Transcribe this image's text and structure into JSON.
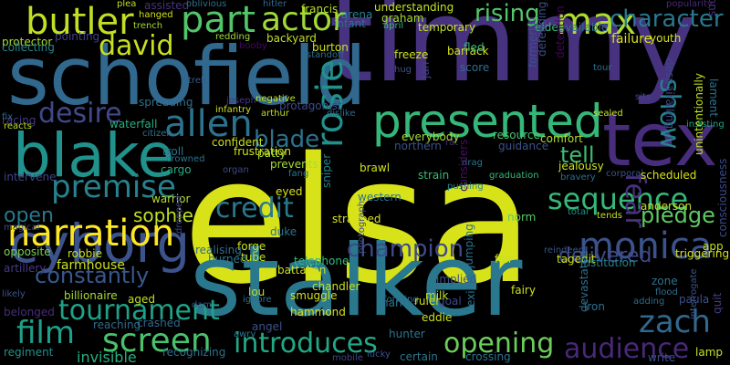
{
  "words": [
    {
      "text": "elsa",
      "color": "#d8e219"
    },
    {
      "text": "timmy",
      "color": "#46327e"
    },
    {
      "text": "stalker",
      "color": "#2a788e"
    },
    {
      "text": "schofield",
      "color": "#31688e"
    },
    {
      "text": "tex",
      "color": "#472d7b"
    },
    {
      "text": "blake",
      "color": "#21918c"
    },
    {
      "text": "presented",
      "color": "#35b779"
    },
    {
      "text": "cyborg",
      "color": "#3b528b"
    },
    {
      "text": "butler",
      "color": "#c2df23"
    },
    {
      "text": "part",
      "color": "#52c569"
    },
    {
      "text": "actor",
      "color": "#a0da39"
    },
    {
      "text": "max",
      "color": "#addc30"
    },
    {
      "text": "character",
      "color": "#29788e"
    },
    {
      "text": "david",
      "color": "#c8e020"
    },
    {
      "text": "rising",
      "color": "#54c568"
    },
    {
      "text": "allen",
      "color": "#2c728e"
    },
    {
      "text": "desire",
      "color": "#3f4889"
    },
    {
      "text": "monica",
      "color": "#3b528b"
    },
    {
      "text": "narration",
      "color": "#fde725"
    },
    {
      "text": "premise",
      "color": "#26828e"
    },
    {
      "text": "sequence",
      "color": "#35b779"
    },
    {
      "text": "rosie",
      "color": "#21918c"
    },
    {
      "text": "blade",
      "color": "#2c728e"
    },
    {
      "text": "credit",
      "color": "#2a788e"
    },
    {
      "text": "film",
      "color": "#1f9f88"
    },
    {
      "text": "screen",
      "color": "#4ac16d"
    },
    {
      "text": "introduces",
      "color": "#22a884"
    },
    {
      "text": "opening",
      "color": "#6ccd5a"
    },
    {
      "text": "zach",
      "color": "#31688e"
    },
    {
      "text": "audience",
      "color": "#482878"
    },
    {
      "text": "tournament",
      "color": "#1fa287"
    },
    {
      "text": "champion",
      "color": "#3e4a89"
    },
    {
      "text": "show",
      "color": "#26818e"
    },
    {
      "text": "fear",
      "color": "#46327e"
    },
    {
      "text": "pledge",
      "color": "#5ec962"
    },
    {
      "text": "delivered",
      "color": "#3e4989"
    },
    {
      "text": "tell",
      "color": "#3dbc74"
    },
    {
      "text": "open",
      "color": "#2a768e"
    },
    {
      "text": "constantly",
      "color": "#38588c"
    },
    {
      "text": "sophie",
      "color": "#bddf26"
    },
    {
      "text": "invisible",
      "color": "#26ad81"
    },
    {
      "text": "robbie",
      "color": "#c5e021"
    },
    {
      "text": "farmhouse",
      "color": "#cde11d"
    },
    {
      "text": "artillery",
      "color": "#443a83"
    },
    {
      "text": "opposite",
      "color": "#7ad151"
    },
    {
      "text": "billionaire",
      "color": "#a8db34"
    },
    {
      "text": "belonged",
      "color": "#472d7b"
    },
    {
      "text": "regiment",
      "color": "#21918c"
    },
    {
      "text": "protector",
      "color": "#a5db36"
    },
    {
      "text": "collecting",
      "color": "#25848e"
    },
    {
      "text": "racing",
      "color": "#453781"
    },
    {
      "text": "fix",
      "color": "#31688e"
    },
    {
      "text": "reacts",
      "color": "#bddf26"
    },
    {
      "text": "intervene",
      "color": "#414487"
    },
    {
      "text": "magical",
      "color": "#3f4889"
    },
    {
      "text": "likely",
      "color": "#3b528b"
    },
    {
      "text": "pointing",
      "color": "#433e85"
    },
    {
      "text": "plea",
      "color": "#c2df23"
    },
    {
      "text": "assisted",
      "color": "#46327e"
    },
    {
      "text": "hanged",
      "color": "#d2e21b"
    },
    {
      "text": "trench",
      "color": "#a2da37"
    },
    {
      "text": "oblivious",
      "color": "#2e6f8e"
    },
    {
      "text": "redding",
      "color": "#a0da39"
    },
    {
      "text": "booby",
      "color": "#460b5e"
    },
    {
      "text": "hitler",
      "color": "#31688e"
    },
    {
      "text": "francis",
      "color": "#b8de29"
    },
    {
      "text": "backyard",
      "color": "#c0df25"
    },
    {
      "text": "burton",
      "color": "#d0e11c"
    },
    {
      "text": "standoff",
      "color": "#2d708e"
    },
    {
      "text": "arena",
      "color": "#25838e"
    },
    {
      "text": "infant",
      "color": "#2c728e"
    },
    {
      "text": "graham",
      "color": "#a5db36"
    },
    {
      "text": "april",
      "color": "#35b779"
    },
    {
      "text": "understanding",
      "color": "#c5e021"
    },
    {
      "text": "temporary",
      "color": "#c8e020"
    },
    {
      "text": "barrack",
      "color": "#d5e21a"
    },
    {
      "text": "fled",
      "color": "#38b977"
    },
    {
      "text": "score",
      "color": "#2e6e8e"
    },
    {
      "text": "freeze",
      "color": "#d0e11c"
    },
    {
      "text": "hug",
      "color": "#3b528b"
    },
    {
      "text": "jan",
      "color": "#424186"
    },
    {
      "text": "elder",
      "color": "#37b878"
    },
    {
      "text": "available",
      "color": "#2e6f8e"
    },
    {
      "text": "failure",
      "color": "#d8e219"
    },
    {
      "text": "formerly",
      "color": "#3b528b"
    },
    {
      "text": "defending",
      "color": "#3d4d8a"
    },
    {
      "text": "detention",
      "color": "#450559"
    },
    {
      "text": "tour",
      "color": "#2e6e8e"
    },
    {
      "text": "sealed",
      "color": "#c5e021"
    },
    {
      "text": "sits",
      "color": "#3e4989"
    },
    {
      "text": "youth",
      "color": "#d5e21a"
    },
    {
      "text": "popularity",
      "color": "#482878"
    },
    {
      "text": "sudan",
      "color": "#46327e"
    },
    {
      "text": "despairalling",
      "color": "#3f4788"
    },
    {
      "text": "lament",
      "color": "#2b758e"
    },
    {
      "text": "insisting",
      "color": "#20a386"
    },
    {
      "text": "comfort",
      "color": "#b0dd2f"
    },
    {
      "text": "resource",
      "color": "#4ec36b"
    },
    {
      "text": "guidance",
      "color": "#3b528b"
    },
    {
      "text": "rat",
      "color": "#472c7a"
    },
    {
      "text": "northern",
      "color": "#3b528b"
    },
    {
      "text": "everybody",
      "color": "#a2da37"
    },
    {
      "text": "protagonist",
      "color": "#3e4989"
    },
    {
      "text": "negative",
      "color": "#c2df23"
    },
    {
      "text": "arthur",
      "color": "#c2df23"
    },
    {
      "text": "dislike",
      "color": "#31688e"
    },
    {
      "text": "infantry",
      "color": "#c8e020"
    },
    {
      "text": "joseph",
      "color": "#453781"
    },
    {
      "text": "trek",
      "color": "#375a8c"
    },
    {
      "text": "spreading",
      "color": "#2e6f8e"
    },
    {
      "text": "waterfall",
      "color": "#29af7f"
    },
    {
      "text": "citizen",
      "color": "#2c738e"
    },
    {
      "text": "confident",
      "color": "#c8e020"
    },
    {
      "text": "frustration",
      "color": "#d0e11c"
    },
    {
      "text": "patty",
      "color": "#a8db34"
    },
    {
      "text": "troll",
      "color": "#2b748e"
    },
    {
      "text": "crowned",
      "color": "#2b758e"
    },
    {
      "text": "cargo",
      "color": "#26ad81"
    },
    {
      "text": "warrior",
      "color": "#b2dd2d"
    },
    {
      "text": "prevents",
      "color": "#a8db34"
    },
    {
      "text": "fang",
      "color": "#2a768e"
    },
    {
      "text": "eyed",
      "color": "#d8e219"
    },
    {
      "text": "sniper",
      "color": "#26828e"
    },
    {
      "text": "brawl",
      "color": "#d2e21b"
    },
    {
      "text": "strain",
      "color": "#3aba76"
    },
    {
      "text": "drag",
      "color": "#2b758e"
    },
    {
      "text": "graduation",
      "color": "#37b878"
    },
    {
      "text": "jealousy",
      "color": "#cae11f"
    },
    {
      "text": "bravery",
      "color": "#2c718e"
    },
    {
      "text": "corporal",
      "color": "#3b528b"
    },
    {
      "text": "scheduled",
      "color": "#d5e21a"
    },
    {
      "text": "anderson",
      "color": "#c2df23"
    },
    {
      "text": "app",
      "color": "#c2df23"
    },
    {
      "text": "unintentionally",
      "color": "#bddf26"
    },
    {
      "text": "consciousness",
      "color": "#3e4a89"
    },
    {
      "text": "triggering",
      "color": "#d0e11c"
    },
    {
      "text": "tends",
      "color": "#c5e021"
    },
    {
      "text": "total",
      "color": "#1f958b"
    },
    {
      "text": "western",
      "color": "#2a768e"
    },
    {
      "text": "pushing",
      "color": "#25848e"
    },
    {
      "text": "considers",
      "color": "#471063"
    },
    {
      "text": "norm",
      "color": "#5cc863"
    },
    {
      "text": "reindeer",
      "color": "#3b528b"
    },
    {
      "text": "tagedit",
      "color": "#cde11d"
    },
    {
      "text": "institution",
      "color": "#26818e"
    },
    {
      "text": "zone",
      "color": "#2b758e"
    },
    {
      "text": "flood",
      "color": "#2e6f8e"
    },
    {
      "text": "paula",
      "color": "#3b528b"
    },
    {
      "text": "adding",
      "color": "#2f6c8e"
    },
    {
      "text": "quit",
      "color": "#433e85"
    },
    {
      "text": "lamp",
      "color": "#c5e021"
    },
    {
      "text": "iron",
      "color": "#2d708e"
    },
    {
      "text": "devastated",
      "color": "#2e6f8e"
    },
    {
      "text": "write",
      "color": "#3b528b"
    },
    {
      "text": "fairy",
      "color": "#cde11d"
    },
    {
      "text": "fair",
      "color": "#c2df23"
    },
    {
      "text": "goal",
      "color": "#3e4989"
    },
    {
      "text": "implied",
      "color": "#3b528b"
    },
    {
      "text": "jumping",
      "color": "#2d708e"
    },
    {
      "text": "exiled",
      "color": "#2c718e"
    },
    {
      "text": "crossing",
      "color": "#2c728e"
    },
    {
      "text": "certain",
      "color": "#2a768e"
    },
    {
      "text": "lucky",
      "color": "#3b528b"
    },
    {
      "text": "mobile",
      "color": "#3f4788"
    },
    {
      "text": "hunter",
      "color": "#2a768e"
    },
    {
      "text": "harm",
      "color": "#2b748e"
    },
    {
      "text": "eddie",
      "color": "#cde11d"
    },
    {
      "text": "forming",
      "color": "#2e6f8e"
    },
    {
      "text": "ruler",
      "color": "#d0e11c"
    },
    {
      "text": "milk",
      "color": "#c2df23"
    },
    {
      "text": "strapped",
      "color": "#d8e219"
    },
    {
      "text": "telephone",
      "color": "#35b779"
    },
    {
      "text": "chandler",
      "color": "#c5e021"
    },
    {
      "text": "smuggle",
      "color": "#d0e11c"
    },
    {
      "text": "hammond",
      "color": "#d8e219"
    },
    {
      "text": "photograph",
      "color": "#3e4989"
    },
    {
      "text": "lou",
      "color": "#c2df23"
    },
    {
      "text": "ignore",
      "color": "#2e6f8e"
    },
    {
      "text": "tube",
      "color": "#c2df23"
    },
    {
      "text": "battalion",
      "color": "#cde11d"
    },
    {
      "text": "forge",
      "color": "#c8e020"
    },
    {
      "text": "duke",
      "color": "#2c728e"
    },
    {
      "text": "burned",
      "color": "#2b758e"
    },
    {
      "text": "realising",
      "color": "#2e6e8e"
    },
    {
      "text": "dropped",
      "color": "#3e4989"
    },
    {
      "text": "aged",
      "color": "#c2df23"
    },
    {
      "text": "crashed",
      "color": "#31688e"
    },
    {
      "text": "reaching",
      "color": "#2e6e8e"
    },
    {
      "text": "dam",
      "color": "#3b528b"
    },
    {
      "text": "angel",
      "color": "#3b528b"
    },
    {
      "text": "awry",
      "color": "#2a788e"
    },
    {
      "text": "recognizing",
      "color": "#2c728e"
    },
    {
      "text": "interrogate",
      "color": "#3b528b"
    },
    {
      "text": "organ",
      "color": "#3e4989"
    }
  ]
}
